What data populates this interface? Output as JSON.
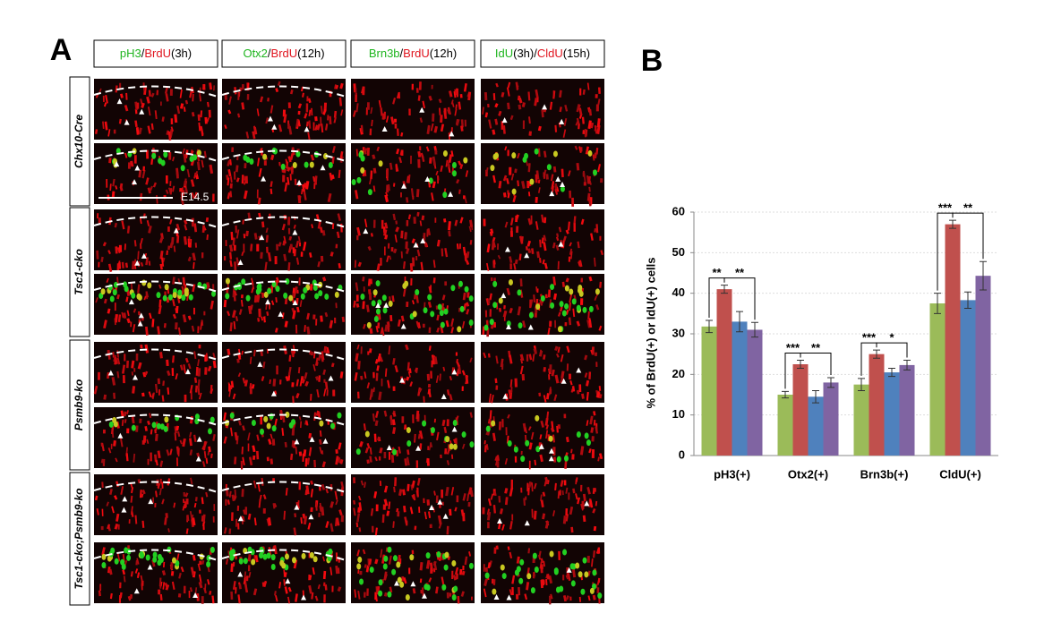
{
  "panel_a": {
    "label": "A",
    "headers": [
      {
        "parts": [
          {
            "text": "pH3",
            "color": "#1fb51f"
          },
          {
            "text": "/",
            "color": "#000000"
          },
          {
            "text": "BrdU",
            "color": "#e0141e"
          },
          {
            "text": "(3h)",
            "color": "#000000"
          }
        ]
      },
      {
        "parts": [
          {
            "text": "Otx2",
            "color": "#1fb51f"
          },
          {
            "text": "/",
            "color": "#000000"
          },
          {
            "text": "BrdU",
            "color": "#e0141e"
          },
          {
            "text": "(12h)",
            "color": "#000000"
          }
        ]
      },
      {
        "parts": [
          {
            "text": "Brn3b",
            "color": "#1fb51f"
          },
          {
            "text": "/",
            "color": "#000000"
          },
          {
            "text": "BrdU",
            "color": "#e0141e"
          },
          {
            "text": "(12h)",
            "color": "#000000"
          }
        ]
      },
      {
        "parts": [
          {
            "text": "IdU",
            "color": "#1fb51f"
          },
          {
            "text": "(3h)/",
            "color": "#000000"
          },
          {
            "text": "CldU",
            "color": "#e0141e"
          },
          {
            "text": "(15h)",
            "color": "#000000"
          }
        ]
      }
    ],
    "rows": [
      "Chx10-Cre",
      "Tsc1-cko",
      "Psmb9-ko",
      "Tsc1-cko;Psmb9-ko"
    ],
    "scale_label": "E14.5"
  },
  "panel_b": {
    "label": "B"
  },
  "chart_data": {
    "type": "bar",
    "y_label": "% of BrdU(+) or IdU(+) cells",
    "categories": [
      "pH3(+)",
      "Otx2(+)",
      "Brn3b(+)",
      "CldU(+)"
    ],
    "series": [
      {
        "color": "#9bbb59",
        "values": [
          31.8,
          15,
          17.5,
          37.5
        ],
        "errors": [
          1.5,
          0.8,
          1.5,
          2.5
        ]
      },
      {
        "color": "#c0504d",
        "values": [
          41,
          22.5,
          25,
          57
        ],
        "errors": [
          1,
          1,
          1,
          1
        ]
      },
      {
        "color": "#4f81bd",
        "values": [
          33,
          14.5,
          20.5,
          38.3
        ],
        "errors": [
          2.5,
          1.5,
          1,
          2
        ]
      },
      {
        "color": "#8064a2",
        "values": [
          31,
          18,
          22.3,
          44.3
        ],
        "errors": [
          1.8,
          1.2,
          1.2,
          3.5
        ]
      }
    ],
    "annotations": [
      "**",
      "**",
      "***",
      "**",
      "***",
      "*",
      "***",
      "**"
    ],
    "ylim": [
      0,
      60
    ],
    "yticks": [
      0,
      10,
      20,
      30,
      40,
      50,
      60
    ],
    "grid": true
  }
}
